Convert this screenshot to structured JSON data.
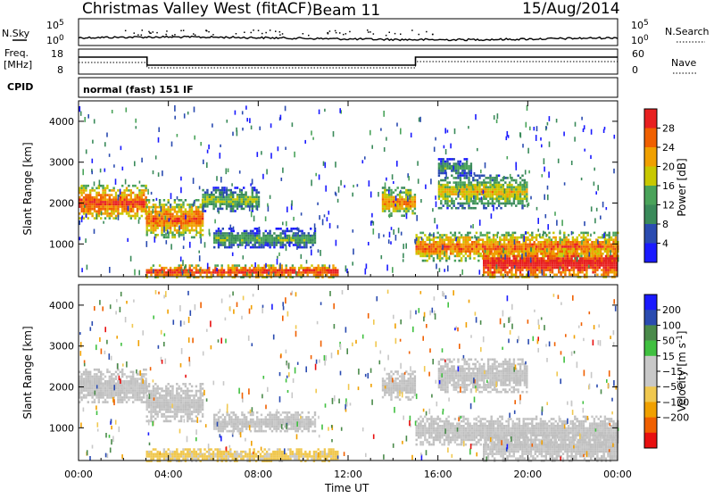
{
  "header": {
    "radar": "Christmas Valley West (fitACF)",
    "beam": "Beam 11",
    "date": "15/Aug/2014"
  },
  "top_panels": {
    "nsky": {
      "label": "N.Sky",
      "tick_hi": "10^5",
      "tick_lo": "10^0",
      "right_label": "N.Search",
      "right_tick_hi": "10^5",
      "right_tick_lo": "10^0"
    },
    "freq": {
      "label_line1": "Freq.",
      "label_line2": "[MHz]",
      "tick_hi": "18",
      "tick_lo": "8",
      "right_label": "Nave",
      "right_tick_hi": "60",
      "right_tick_lo": "0"
    },
    "cpid": {
      "label": "CPID",
      "value": "normal (fast) 151 IF"
    }
  },
  "colors": {
    "power_scale": [
      "#1a1aff",
      "#2a4bb0",
      "#3a8a5a",
      "#4aa35a",
      "#c8c800",
      "#f0a000",
      "#f06000",
      "#e82020"
    ],
    "velocity_scale": [
      "#e81010",
      "#f06000",
      "#f0a000",
      "#f0c850",
      "#c8c8c8",
      "#c8c8c8",
      "#40c040",
      "#4a8a4a",
      "#2a4bb0",
      "#1a1aff"
    ],
    "ground_scatter": "#c0c0c0"
  },
  "chart_data": [
    {
      "type": "heatmap",
      "name": "power",
      "ylabel": "Slant Range [km]",
      "xlabel": "",
      "ylim": [
        200,
        4500
      ],
      "xlim": [
        0,
        24
      ],
      "y_ticks": [
        "1000",
        "2000",
        "3000",
        "4000"
      ],
      "colorbar": {
        "label": "Power [dB]",
        "ticks": [
          "4",
          "8",
          "12",
          "16",
          "20",
          "24",
          "28"
        ],
        "range": [
          0,
          32
        ]
      },
      "regions": [
        {
          "t0": 0.0,
          "t1": 3.0,
          "r0": 1600,
          "r1": 2450,
          "power": 22
        },
        {
          "t0": 3.0,
          "t1": 5.5,
          "r0": 1150,
          "r1": 2100,
          "power": 20
        },
        {
          "t0": 5.5,
          "t1": 8.0,
          "r0": 1800,
          "r1": 2400,
          "power": 10
        },
        {
          "t0": 6.0,
          "t1": 10.5,
          "r0": 900,
          "r1": 1400,
          "power": 8
        },
        {
          "t0": 3.0,
          "t1": 11.5,
          "r0": 200,
          "r1": 500,
          "power": 24
        },
        {
          "t0": 13.5,
          "t1": 15.0,
          "r0": 1700,
          "r1": 2400,
          "power": 18
        },
        {
          "t0": 15.0,
          "t1": 24.0,
          "r0": 600,
          "r1": 1300,
          "power": 20
        },
        {
          "t0": 18.0,
          "t1": 24.0,
          "r0": 200,
          "r1": 900,
          "power": 26
        },
        {
          "t0": 16.0,
          "t1": 20.0,
          "r0": 1900,
          "r1": 2700,
          "power": 14
        },
        {
          "t0": 16.0,
          "t1": 17.5,
          "r0": 2700,
          "r1": 3100,
          "power": 8
        }
      ]
    },
    {
      "type": "heatmap",
      "name": "velocity",
      "ylabel": "Slant Range [km]",
      "xlabel": "Time UT",
      "ylim": [
        200,
        4500
      ],
      "xlim": [
        0,
        24
      ],
      "x_ticks": [
        "00:00",
        "04:00",
        "08:00",
        "12:00",
        "16:00",
        "20:00",
        "00:00"
      ],
      "y_ticks": [
        "1000",
        "2000",
        "3000",
        "4000"
      ],
      "colorbar": {
        "label": "Velocity [m s^-1]",
        "ticks": [
          "200",
          "100",
          "50",
          "15",
          "-15",
          "-50",
          "-100",
          "-200"
        ],
        "range": [
          -250,
          250
        ]
      },
      "regions": [
        {
          "t0": 0.0,
          "t1": 3.0,
          "r0": 1600,
          "r1": 2450,
          "velocity": 0
        },
        {
          "t0": 3.0,
          "t1": 5.5,
          "r0": 1150,
          "r1": 2100,
          "velocity": 0
        },
        {
          "t0": 6.0,
          "t1": 10.5,
          "r0": 900,
          "r1": 1400,
          "velocity": 0
        },
        {
          "t0": 3.0,
          "t1": 11.5,
          "r0": 200,
          "r1": 500,
          "velocity": -60
        },
        {
          "t0": 13.5,
          "t1": 15.0,
          "r0": 1700,
          "r1": 2400,
          "velocity": 0
        },
        {
          "t0": 15.0,
          "t1": 24.0,
          "r0": 600,
          "r1": 1300,
          "velocity": 0
        },
        {
          "t0": 18.0,
          "t1": 24.0,
          "r0": 200,
          "r1": 900,
          "velocity": 0
        },
        {
          "t0": 16.0,
          "t1": 20.0,
          "r0": 1900,
          "r1": 2700,
          "velocity": 0
        }
      ]
    }
  ]
}
